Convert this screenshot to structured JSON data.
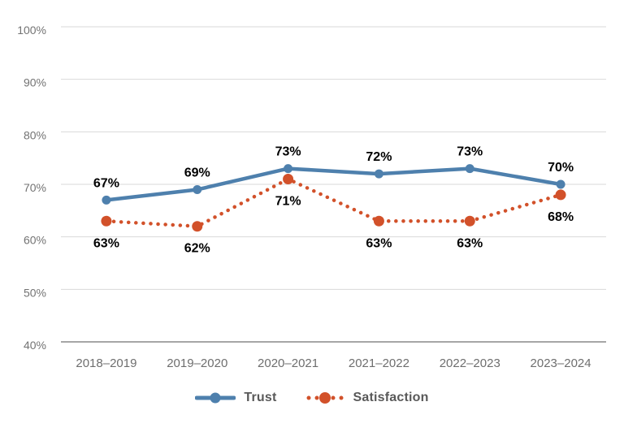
{
  "chart_data": {
    "type": "line",
    "categories": [
      "2018–2019",
      "2019–2020",
      "2020–2021",
      "2021–2022",
      "2022–2023",
      "2023–2024"
    ],
    "series": [
      {
        "name": "Trust",
        "values": [
          67,
          69,
          73,
          72,
          73,
          70
        ],
        "data_labels": [
          "67%",
          "69%",
          "73%",
          "72%",
          "73%",
          "70%"
        ],
        "color": "#4e80ad",
        "line_style": "solid",
        "label_position": "above"
      },
      {
        "name": "Satisfaction",
        "values": [
          63,
          62,
          71,
          63,
          63,
          68
        ],
        "data_labels": [
          "63%",
          "62%",
          "71%",
          "63%",
          "63%",
          "68%"
        ],
        "color": "#d2512a",
        "line_style": "dotted",
        "label_position": "below"
      }
    ],
    "ylim": [
      40,
      100
    ],
    "ytick_values": [
      40,
      50,
      60,
      70,
      80,
      90,
      100
    ],
    "ytick_labels": [
      "40%",
      "50%",
      "60%",
      "70%",
      "80%",
      "90%",
      "100%"
    ],
    "grid": true,
    "legend_position": "bottom",
    "colors": {
      "grid_line": "#d9d9d9",
      "axis_line": "#a6a6a6",
      "tick_label": "#737373",
      "data_label": "#000000",
      "legend_label": "#595959",
      "background": "#ffffff"
    }
  }
}
